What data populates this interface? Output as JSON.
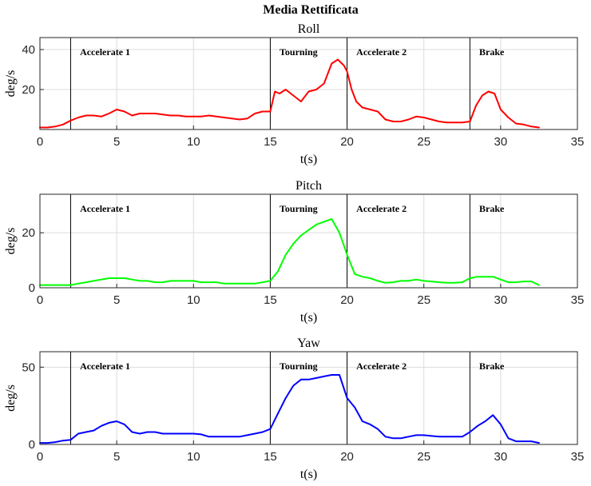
{
  "figure_title": "Media Rettificata",
  "chart_data": [
    {
      "type": "line",
      "title": "Roll",
      "xlabel": "t(s)",
      "ylabel": "deg/s",
      "xlim": [
        0,
        35
      ],
      "ylim": [
        0,
        46
      ],
      "xticks": [
        0,
        5,
        10,
        15,
        20,
        25,
        30,
        35
      ],
      "yticks": [
        20,
        40
      ],
      "grid": true,
      "color": "#ff0000",
      "phase_lines": [
        2,
        15,
        20,
        28
      ],
      "phase_labels": [
        {
          "text": "Accelerate 1",
          "x": 2.5
        },
        {
          "text": "Tourning",
          "x": 15.5
        },
        {
          "text": "Accelerate 2",
          "x": 20.5
        },
        {
          "text": "Brake",
          "x": 28.5
        }
      ],
      "x": [
        0,
        0.5,
        1,
        1.5,
        2,
        2.5,
        3,
        3.5,
        4,
        4.5,
        5,
        5.5,
        6,
        6.5,
        7,
        7.5,
        8,
        8.5,
        9,
        9.5,
        10,
        10.5,
        11,
        11.5,
        12,
        12.5,
        13,
        13.5,
        14,
        14.5,
        15,
        15.3,
        15.6,
        16,
        16.5,
        17,
        17.5,
        18,
        18.5,
        19,
        19.4,
        19.8,
        20,
        20.3,
        20.6,
        21,
        21.5,
        22,
        22.5,
        23,
        23.5,
        24,
        24.5,
        25,
        25.5,
        26,
        26.5,
        27,
        27.5,
        28,
        28.4,
        28.8,
        29.2,
        29.6,
        30,
        30.5,
        31,
        31.5,
        32,
        32.5
      ],
      "y": [
        1,
        1,
        1.5,
        2.5,
        4.5,
        6,
        7,
        7,
        6.5,
        8,
        10,
        9,
        7,
        8,
        8,
        8,
        7.5,
        7,
        7,
        6.5,
        6.5,
        6.5,
        7,
        6.5,
        6,
        5.5,
        5,
        5.5,
        8,
        9,
        9,
        19,
        18,
        20,
        17,
        14,
        19,
        20,
        23,
        33,
        35,
        32,
        29,
        20,
        14,
        11,
        10,
        9,
        5,
        4,
        4,
        5,
        6.5,
        6,
        5,
        4,
        3.5,
        3.5,
        3.5,
        4,
        12,
        17,
        19,
        18,
        10,
        6,
        3,
        2.5,
        1.5,
        1
      ]
    },
    {
      "type": "line",
      "title": "Pitch",
      "xlabel": "t(s)",
      "ylabel": "deg/s",
      "xlim": [
        0,
        35
      ],
      "ylim": [
        0,
        34
      ],
      "xticks": [
        0,
        5,
        10,
        15,
        20,
        25,
        30,
        35
      ],
      "yticks": [
        0,
        20
      ],
      "grid": true,
      "color": "#00ff00",
      "phase_lines": [
        2,
        15,
        20,
        28
      ],
      "phase_labels": [
        {
          "text": "Accelerate 1",
          "x": 2.5
        },
        {
          "text": "Tourning",
          "x": 15.5
        },
        {
          "text": "Accelerate 2",
          "x": 20.5
        },
        {
          "text": "Brake",
          "x": 28.5
        }
      ],
      "x": [
        0,
        0.5,
        1,
        1.5,
        2,
        2.5,
        3,
        3.5,
        4,
        4.5,
        5,
        5.5,
        6,
        6.5,
        7,
        7.5,
        8,
        8.5,
        9,
        9.5,
        10,
        10.5,
        11,
        11.5,
        12,
        12.5,
        13,
        13.5,
        14,
        14.5,
        15,
        15.5,
        16,
        16.5,
        17,
        17.5,
        18,
        18.5,
        19,
        19.5,
        20,
        20.5,
        21,
        21.5,
        22,
        22.5,
        23,
        23.5,
        24,
        24.5,
        25,
        25.5,
        26,
        26.5,
        27,
        27.5,
        28,
        28.5,
        29,
        29.5,
        30,
        30.5,
        31,
        31.5,
        32,
        32.5
      ],
      "y": [
        1,
        1,
        1,
        1,
        1,
        1.5,
        2,
        2.5,
        3,
        3.5,
        3.5,
        3.5,
        3,
        2.5,
        2.5,
        2,
        2,
        2.5,
        2.5,
        2.5,
        2.5,
        2,
        2,
        2,
        1.5,
        1.5,
        1.5,
        1.5,
        1.5,
        2,
        2.5,
        6,
        12,
        16,
        19,
        21,
        23,
        24,
        25,
        20,
        12,
        5,
        4,
        3.5,
        2.5,
        1.8,
        2,
        2.5,
        2.5,
        3,
        2.5,
        2.3,
        2,
        1.8,
        1.8,
        2,
        3.5,
        4,
        4,
        4,
        3,
        2,
        2,
        2.3,
        2.3,
        1
      ]
    },
    {
      "type": "line",
      "title": "Yaw",
      "xlabel": "t(s)",
      "ylabel": "deg/s",
      "xlim": [
        0,
        35
      ],
      "ylim": [
        0,
        60
      ],
      "xticks": [
        0,
        5,
        10,
        15,
        20,
        25,
        30,
        35
      ],
      "yticks": [
        0,
        50
      ],
      "grid": true,
      "color": "#0000ff",
      "phase_lines": [
        2,
        15,
        20,
        28
      ],
      "phase_labels": [
        {
          "text": "Accelerate 1",
          "x": 2.5
        },
        {
          "text": "Tourning",
          "x": 15.5
        },
        {
          "text": "Accelerate 2",
          "x": 20.5
        },
        {
          "text": "Brake",
          "x": 28.5
        }
      ],
      "x": [
        0,
        0.5,
        1,
        1.5,
        2,
        2.5,
        3,
        3.5,
        4,
        4.5,
        5,
        5.5,
        6,
        6.5,
        7,
        7.5,
        8,
        8.5,
        9,
        9.5,
        10,
        10.5,
        11,
        11.5,
        12,
        12.5,
        13,
        13.5,
        14,
        14.5,
        15,
        15.5,
        16,
        16.5,
        17,
        17.5,
        18,
        18.5,
        19,
        19.5,
        20,
        20.5,
        21,
        21.5,
        22,
        22.5,
        23,
        23.5,
        24,
        24.5,
        25,
        25.5,
        26,
        26.5,
        27,
        27.5,
        28,
        28.5,
        29,
        29.5,
        30,
        30.5,
        31,
        31.5,
        32,
        32.5
      ],
      "y": [
        1,
        1,
        1.5,
        2.5,
        3,
        7,
        8,
        9,
        12,
        14,
        15,
        13,
        8,
        7,
        8,
        8,
        7,
        7,
        7,
        7,
        7,
        6.5,
        5,
        5,
        5,
        5,
        5,
        6,
        7,
        8,
        10,
        20,
        30,
        38,
        42,
        42,
        43,
        44,
        45,
        45,
        30,
        24,
        15,
        13,
        10,
        5,
        4,
        4,
        5,
        6,
        6,
        5.5,
        5,
        5,
        5,
        5,
        8,
        12,
        15,
        19,
        13,
        4,
        2,
        2,
        2,
        1
      ]
    }
  ]
}
